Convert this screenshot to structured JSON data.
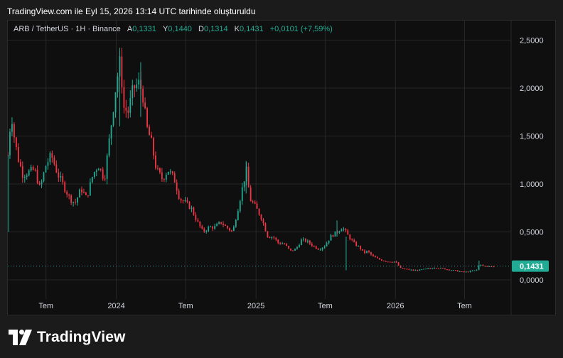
{
  "caption": "TradingView.com ile Eyl 15, 2026 13:14 UTC tarihinde oluşturuldu",
  "legend": {
    "symbol": "ARB / TetherUS · 1H · Binance",
    "open_label": "A",
    "open_value": "0,1331",
    "high_label": "Y",
    "high_value": "0,1440",
    "low_label": "D",
    "low_value": "0,1314",
    "close_label": "K",
    "close_value": "0,1431",
    "change": "+0,0101 (+7,59%)"
  },
  "brand": {
    "name": "TradingView",
    "icon": "tradingview-logo-icon"
  },
  "colors": {
    "up": "#22ab94",
    "down": "#f23645",
    "last_price_bg": "#22ab94",
    "background": "#0f0f0f",
    "grid": "#3a3a3a"
  },
  "chart_data": {
    "type": "candlestick",
    "symbol": "ARB / TetherUS",
    "interval": "1H",
    "exchange": "Binance",
    "y_ticks": [
      "2,5000",
      "2,0000",
      "1,5000",
      "1,0000",
      "0,5000",
      "0,0000"
    ],
    "y_tick_values": [
      2.5,
      2.0,
      1.5,
      1.0,
      0.5,
      0.0
    ],
    "ylim": [
      -0.1,
      2.6
    ],
    "x_ticks": [
      "Tem",
      "2024",
      "Tem",
      "2025",
      "Tem",
      "2026",
      "Tem"
    ],
    "x_tick_dates": [
      "2023-07-01",
      "2024-01-01",
      "2024-07-01",
      "2025-01-01",
      "2025-07-01",
      "2026-01-01",
      "2026-07-01"
    ],
    "xlim": [
      "2023-03-23",
      "2026-10-31"
    ],
    "last_price": "0,1431",
    "last_price_value": 0.1431,
    "grid": true,
    "closes": [
      [
        "2023-03-23",
        1.3
      ],
      [
        "2023-04-01",
        1.75
      ],
      [
        "2023-04-10",
        1.45
      ],
      [
        "2023-04-20",
        1.25
      ],
      [
        "2023-05-01",
        1.1
      ],
      [
        "2023-05-15",
        1.12
      ],
      [
        "2023-06-01",
        1.15
      ],
      [
        "2023-06-15",
        0.95
      ],
      [
        "2023-07-01",
        1.2
      ],
      [
        "2023-07-15",
        1.3
      ],
      [
        "2023-08-01",
        1.1
      ],
      [
        "2023-08-20",
        0.95
      ],
      [
        "2023-09-01",
        0.85
      ],
      [
        "2023-09-15",
        0.8
      ],
      [
        "2023-10-01",
        0.95
      ],
      [
        "2023-10-15",
        0.85
      ],
      [
        "2023-11-01",
        1.1
      ],
      [
        "2023-11-15",
        1.2
      ],
      [
        "2023-12-01",
        1.05
      ],
      [
        "2023-12-15",
        1.5
      ],
      [
        "2024-01-01",
        2.05
      ],
      [
        "2024-01-12",
        2.3
      ],
      [
        "2024-01-20",
        1.8
      ],
      [
        "2024-02-01",
        1.75
      ],
      [
        "2024-02-15",
        2.0
      ],
      [
        "2024-03-01",
        2.05
      ],
      [
        "2024-03-10",
        1.95
      ],
      [
        "2024-03-20",
        1.6
      ],
      [
        "2024-04-01",
        1.45
      ],
      [
        "2024-04-15",
        1.15
      ],
      [
        "2024-05-01",
        1.05
      ],
      [
        "2024-05-15",
        1.15
      ],
      [
        "2024-06-01",
        1.05
      ],
      [
        "2024-06-15",
        0.85
      ],
      [
        "2024-07-01",
        0.8
      ],
      [
        "2024-07-15",
        0.75
      ],
      [
        "2024-08-01",
        0.6
      ],
      [
        "2024-08-15",
        0.5
      ],
      [
        "2024-09-01",
        0.55
      ],
      [
        "2024-09-15",
        0.55
      ],
      [
        "2024-10-01",
        0.6
      ],
      [
        "2024-10-15",
        0.55
      ],
      [
        "2024-11-01",
        0.5
      ],
      [
        "2024-11-15",
        0.75
      ],
      [
        "2024-12-01",
        1.05
      ],
      [
        "2024-12-08",
        1.15
      ],
      [
        "2024-12-15",
        0.85
      ],
      [
        "2025-01-01",
        0.75
      ],
      [
        "2025-01-15",
        0.65
      ],
      [
        "2025-02-01",
        0.45
      ],
      [
        "2025-02-15",
        0.45
      ],
      [
        "2025-03-01",
        0.38
      ],
      [
        "2025-03-15",
        0.38
      ],
      [
        "2025-04-01",
        0.3
      ],
      [
        "2025-04-15",
        0.32
      ],
      [
        "2025-05-01",
        0.42
      ],
      [
        "2025-05-15",
        0.4
      ],
      [
        "2025-06-01",
        0.35
      ],
      [
        "2025-06-15",
        0.32
      ],
      [
        "2025-07-01",
        0.36
      ],
      [
        "2025-07-15",
        0.45
      ],
      [
        "2025-08-01",
        0.5
      ],
      [
        "2025-08-15",
        0.55
      ],
      [
        "2025-09-01",
        0.45
      ],
      [
        "2025-09-15",
        0.38
      ],
      [
        "2025-10-01",
        0.33
      ],
      [
        "2025-10-10",
        0.28
      ],
      [
        "2025-10-20",
        0.3
      ],
      [
        "2025-11-01",
        0.25
      ],
      [
        "2025-11-15",
        0.22
      ],
      [
        "2025-12-01",
        0.2
      ],
      [
        "2025-12-15",
        0.19
      ],
      [
        "2026-01-01",
        0.19
      ],
      [
        "2026-01-15",
        0.12
      ],
      [
        "2026-02-01",
        0.11
      ],
      [
        "2026-02-15",
        0.1
      ],
      [
        "2026-03-01",
        0.1
      ],
      [
        "2026-03-15",
        0.11
      ],
      [
        "2026-04-01",
        0.12
      ],
      [
        "2026-04-15",
        0.13
      ],
      [
        "2026-05-01",
        0.12
      ],
      [
        "2026-05-15",
        0.11
      ],
      [
        "2026-06-01",
        0.1
      ],
      [
        "2026-06-15",
        0.09
      ],
      [
        "2026-07-01",
        0.08
      ],
      [
        "2026-07-15",
        0.09
      ],
      [
        "2026-08-01",
        0.1
      ],
      [
        "2026-08-10",
        0.17
      ],
      [
        "2026-08-20",
        0.14
      ],
      [
        "2026-09-01",
        0.14
      ],
      [
        "2026-09-15",
        0.1431
      ]
    ]
  }
}
